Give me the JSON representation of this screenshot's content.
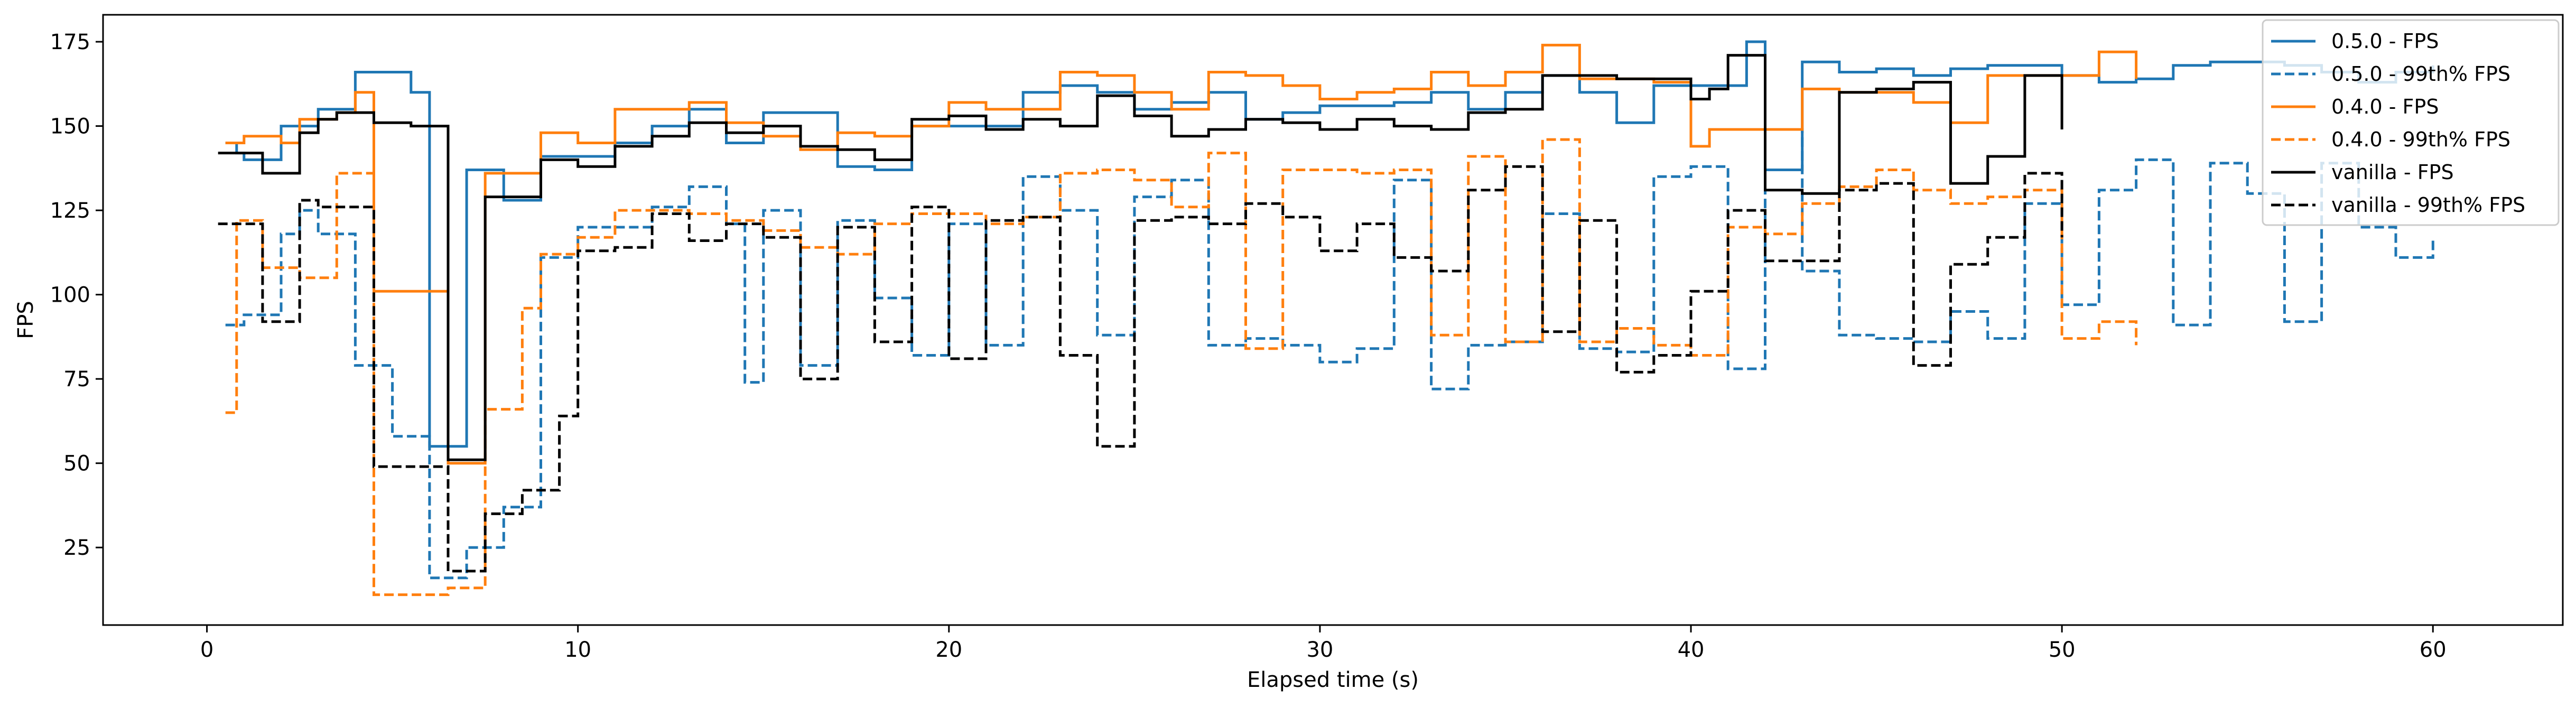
{
  "chart_data": {
    "type": "line",
    "title": "",
    "xlabel": "Elapsed time (s)",
    "ylabel": "FPS",
    "xlim": [
      -2.8,
      63.5
    ],
    "ylim": [
      2,
      183
    ],
    "xticks": [
      0,
      10,
      20,
      30,
      40,
      50,
      60
    ],
    "yticks": [
      25,
      50,
      75,
      100,
      125,
      150,
      175
    ],
    "grid": false,
    "legend_position": "top-right",
    "series": [
      {
        "name": "0.5.0 - FPS",
        "color": "#1f77b4",
        "dash": "solid",
        "x": [
          0.5,
          0.8,
          1.0,
          1.5,
          2.0,
          2.5,
          3.0,
          3.5,
          4.0,
          4.5,
          5.0,
          5.5,
          6.0,
          6.5,
          7.0,
          7.5,
          8.0,
          8.5,
          9.0,
          9.5,
          10.0,
          11.0,
          12.0,
          13.0,
          14.0,
          15.0,
          16.0,
          17.0,
          18.0,
          19.0,
          20.0,
          21.0,
          22.0,
          23.0,
          24.0,
          25.0,
          26.0,
          27.0,
          28.0,
          29.0,
          30.0,
          31.0,
          32.0,
          33.0,
          34.0,
          35.0,
          36.0,
          37.0,
          38.0,
          39.0,
          40.0,
          40.5,
          41.0,
          41.5,
          42.0,
          43.0,
          44.0,
          45.0,
          46.0,
          47.0,
          48.0,
          49.0,
          50.0,
          51.0,
          52.0,
          53.0,
          54.0,
          55.0,
          56.0,
          57.0,
          58.0,
          59.0,
          60.0
        ],
        "values": [
          145,
          142,
          140,
          140,
          150,
          150,
          155,
          155,
          166,
          166,
          166,
          160,
          55,
          55,
          137,
          137,
          128,
          128,
          141,
          141,
          141,
          145,
          150,
          155,
          145,
          154,
          154,
          138,
          137,
          150,
          150,
          150,
          160,
          162,
          160,
          155,
          157,
          160,
          152,
          154,
          156,
          156,
          157,
          160,
          155,
          160,
          165,
          160,
          151,
          162,
          162,
          162,
          162,
          175,
          137,
          169,
          166,
          167,
          165,
          167,
          168,
          168,
          165,
          163,
          164,
          168,
          169,
          169,
          168,
          166,
          163,
          166,
          168
        ]
      },
      {
        "name": "0.5.0 - 99th% FPS",
        "color": "#1f77b4",
        "dash": "dashed",
        "x": [
          0.5,
          1.0,
          1.5,
          2.0,
          2.5,
          3.0,
          3.5,
          4.0,
          4.5,
          5.0,
          5.5,
          6.0,
          6.5,
          7.0,
          7.5,
          8.0,
          8.5,
          9.0,
          9.5,
          10.0,
          11.0,
          12.0,
          13.0,
          14.0,
          14.5,
          15.0,
          16.0,
          17.0,
          18.0,
          19.0,
          20.0,
          21.0,
          22.0,
          23.0,
          24.0,
          25.0,
          26.0,
          27.0,
          28.0,
          29.0,
          30.0,
          31.0,
          32.0,
          33.0,
          34.0,
          35.0,
          36.0,
          37.0,
          38.0,
          39.0,
          40.0,
          41.0,
          42.0,
          43.0,
          44.0,
          45.0,
          46.0,
          47.0,
          48.0,
          49.0,
          50.0,
          51.0,
          52.0,
          53.0,
          54.0,
          55.0,
          56.0,
          57.0,
          58.0,
          59.0,
          60.0
        ],
        "values": [
          91,
          94,
          94,
          118,
          125,
          118,
          118,
          79,
          79,
          58,
          58,
          16,
          16,
          25,
          25,
          37,
          37,
          111,
          111,
          120,
          120,
          126,
          132,
          121,
          74,
          125,
          79,
          122,
          99,
          82,
          121,
          85,
          135,
          125,
          88,
          129,
          134,
          85,
          87,
          85,
          80,
          84,
          134,
          72,
          85,
          86,
          124,
          84,
          83,
          135,
          138,
          78,
          149,
          107,
          88,
          87,
          86,
          95,
          87,
          127,
          97,
          131,
          140,
          91,
          139,
          130,
          92,
          139,
          120,
          111,
          117
        ]
      },
      {
        "name": "0.4.0 - FPS",
        "color": "#ff7f0e",
        "dash": "solid",
        "x": [
          0.5,
          1.0,
          1.5,
          2.0,
          2.5,
          3.0,
          3.5,
          4.0,
          4.5,
          5.0,
          5.5,
          6.0,
          6.5,
          7.0,
          7.5,
          8.0,
          9.0,
          10.0,
          11.0,
          12.0,
          13.0,
          14.0,
          15.0,
          16.0,
          17.0,
          18.0,
          19.0,
          20.0,
          21.0,
          22.0,
          23.0,
          24.0,
          25.0,
          26.0,
          27.0,
          28.0,
          29.0,
          30.0,
          31.0,
          32.0,
          33.0,
          34.0,
          35.0,
          36.0,
          37.0,
          38.0,
          39.0,
          40.0,
          40.5,
          41.0,
          42.0,
          43.0,
          44.0,
          45.0,
          46.0,
          47.0,
          48.0,
          49.0,
          50.0,
          51.0,
          52.0
        ],
        "values": [
          145,
          147,
          147,
          145,
          152,
          152,
          154,
          160,
          101,
          101,
          101,
          101,
          50,
          50,
          136,
          136,
          148,
          145,
          155,
          155,
          157,
          151,
          147,
          143,
          148,
          147,
          150,
          157,
          155,
          155,
          166,
          165,
          160,
          155,
          166,
          165,
          162,
          158,
          160,
          161,
          166,
          162,
          166,
          174,
          164,
          164,
          163,
          144,
          149,
          149,
          149,
          161,
          160,
          160,
          157,
          151,
          165,
          165,
          165,
          172,
          164
        ]
      },
      {
        "name": "0.4.0 - 99th% FPS",
        "color": "#ff7f0e",
        "dash": "dashed",
        "x": [
          0.5,
          0.8,
          1.5,
          2.0,
          2.5,
          3.0,
          3.5,
          4.0,
          4.5,
          5.0,
          5.5,
          6.0,
          6.5,
          7.0,
          7.5,
          8.0,
          8.5,
          9.0,
          9.5,
          10.0,
          11.0,
          12.0,
          13.0,
          14.0,
          15.0,
          16.0,
          17.0,
          18.0,
          19.0,
          20.0,
          21.0,
          22.0,
          23.0,
          24.0,
          25.0,
          26.0,
          27.0,
          28.0,
          29.0,
          30.0,
          31.0,
          32.0,
          33.0,
          34.0,
          35.0,
          36.0,
          37.0,
          38.0,
          39.0,
          40.0,
          41.0,
          42.0,
          43.0,
          44.0,
          45.0,
          46.0,
          47.0,
          48.0,
          49.0,
          50.0,
          51.0,
          52.0
        ],
        "values": [
          65,
          122,
          108,
          108,
          105,
          105,
          136,
          136,
          11,
          11,
          11,
          11,
          13,
          13,
          66,
          66,
          96,
          112,
          112,
          117,
          125,
          125,
          124,
          122,
          119,
          114,
          112,
          121,
          124,
          124,
          121,
          123,
          136,
          137,
          134,
          126,
          142,
          84,
          137,
          137,
          136,
          137,
          88,
          141,
          86,
          146,
          86,
          90,
          85,
          82,
          120,
          118,
          127,
          132,
          137,
          131,
          127,
          129,
          131,
          87,
          92,
          85
        ]
      },
      {
        "name": "vanilla - FPS",
        "color": "#000000",
        "dash": "solid",
        "x": [
          0.3,
          1.0,
          1.5,
          2.0,
          2.5,
          3.0,
          3.5,
          4.0,
          4.5,
          5.0,
          5.5,
          6.0,
          6.5,
          7.0,
          7.5,
          8.0,
          9.0,
          10.0,
          11.0,
          12.0,
          13.0,
          14.0,
          15.0,
          16.0,
          17.0,
          18.0,
          19.0,
          20.0,
          21.0,
          22.0,
          23.0,
          24.0,
          25.0,
          26.0,
          27.0,
          28.0,
          29.0,
          30.0,
          31.0,
          32.0,
          33.0,
          34.0,
          35.0,
          36.0,
          37.0,
          38.0,
          39.0,
          40.0,
          40.5,
          41.0,
          41.5,
          42.0,
          43.0,
          44.0,
          45.0,
          46.0,
          47.0,
          48.0,
          49.0,
          50.0
        ],
        "values": [
          142,
          142,
          136,
          136,
          148,
          152,
          154,
          154,
          151,
          151,
          150,
          150,
          51,
          51,
          129,
          129,
          140,
          138,
          144,
          147,
          151,
          148,
          150,
          144,
          143,
          140,
          152,
          153,
          149,
          152,
          150,
          159,
          153,
          147,
          149,
          152,
          151,
          149,
          152,
          150,
          149,
          154,
          155,
          165,
          165,
          164,
          164,
          158,
          161,
          171,
          171,
          131,
          130,
          160,
          161,
          163,
          133,
          141,
          165,
          149
        ]
      },
      {
        "name": "vanilla - 99th% FPS",
        "color": "#000000",
        "dash": "dashed",
        "x": [
          0.3,
          1.0,
          1.5,
          2.0,
          2.5,
          3.0,
          3.5,
          4.0,
          4.5,
          5.0,
          5.5,
          6.0,
          6.5,
          7.0,
          7.5,
          8.0,
          8.5,
          9.0,
          9.5,
          10.0,
          11.0,
          12.0,
          13.0,
          14.0,
          15.0,
          16.0,
          17.0,
          18.0,
          19.0,
          20.0,
          21.0,
          22.0,
          23.0,
          24.0,
          25.0,
          26.0,
          27.0,
          28.0,
          29.0,
          30.0,
          31.0,
          32.0,
          33.0,
          34.0,
          35.0,
          36.0,
          37.0,
          38.0,
          39.0,
          40.0,
          41.0,
          42.0,
          43.0,
          44.0,
          45.0,
          46.0,
          47.0,
          48.0,
          49.0,
          50.0
        ],
        "values": [
          121,
          121,
          92,
          92,
          128,
          126,
          126,
          126,
          49,
          49,
          49,
          49,
          18,
          18,
          35,
          35,
          42,
          42,
          64,
          113,
          114,
          124,
          116,
          121,
          117,
          75,
          120,
          86,
          126,
          81,
          122,
          123,
          82,
          55,
          122,
          123,
          121,
          127,
          123,
          113,
          121,
          111,
          107,
          131,
          138,
          89,
          122,
          77,
          82,
          101,
          125,
          110,
          110,
          131,
          133,
          79,
          109,
          117,
          136,
          117
        ]
      }
    ]
  }
}
